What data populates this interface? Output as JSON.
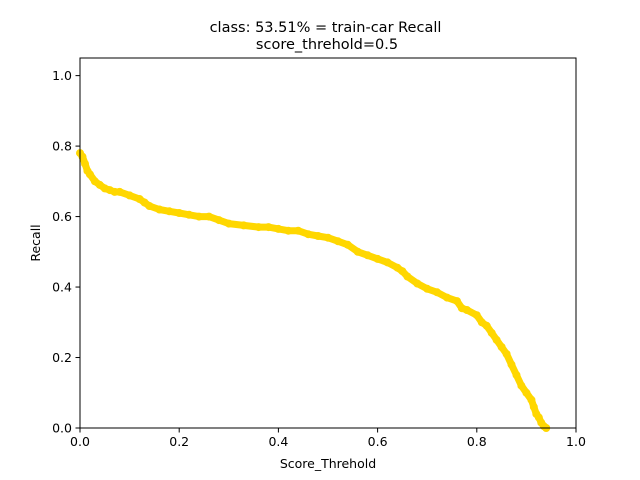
{
  "chart_data": {
    "type": "line",
    "title": "class: 53.51% = train-car Recall",
    "subtitle": "score_threhold=0.5",
    "xlabel": "Score_Threhold",
    "ylabel": "Recall",
    "xlim": [
      0.0,
      1.0
    ],
    "ylim": [
      0.0,
      1.05
    ],
    "xticks": [
      "0.0",
      "0.2",
      "0.4",
      "0.6",
      "0.8",
      "1.0"
    ],
    "yticks": [
      "0.0",
      "0.2",
      "0.4",
      "0.6",
      "0.8",
      "1.0"
    ],
    "grid": false,
    "series": [
      {
        "color": "#FFD700",
        "x": [
          0.0,
          0.005,
          0.01,
          0.015,
          0.02,
          0.03,
          0.04,
          0.05,
          0.06,
          0.07,
          0.08,
          0.1,
          0.12,
          0.13,
          0.14,
          0.16,
          0.18,
          0.2,
          0.22,
          0.24,
          0.26,
          0.28,
          0.3,
          0.33,
          0.36,
          0.38,
          0.4,
          0.42,
          0.44,
          0.46,
          0.48,
          0.5,
          0.52,
          0.54,
          0.56,
          0.58,
          0.6,
          0.62,
          0.64,
          0.65,
          0.66,
          0.68,
          0.7,
          0.72,
          0.74,
          0.76,
          0.77,
          0.78,
          0.8,
          0.81,
          0.82,
          0.83,
          0.84,
          0.85,
          0.86,
          0.87,
          0.88,
          0.89,
          0.9,
          0.91,
          0.915,
          0.92,
          0.925,
          0.93,
          0.935,
          0.94
        ],
        "y": [
          0.78,
          0.77,
          0.75,
          0.73,
          0.72,
          0.7,
          0.69,
          0.68,
          0.675,
          0.67,
          0.67,
          0.66,
          0.65,
          0.64,
          0.63,
          0.62,
          0.615,
          0.61,
          0.605,
          0.6,
          0.6,
          0.59,
          0.58,
          0.575,
          0.57,
          0.57,
          0.565,
          0.56,
          0.56,
          0.55,
          0.545,
          0.54,
          0.53,
          0.52,
          0.5,
          0.49,
          0.48,
          0.47,
          0.455,
          0.445,
          0.43,
          0.41,
          0.395,
          0.385,
          0.37,
          0.36,
          0.34,
          0.335,
          0.32,
          0.3,
          0.29,
          0.27,
          0.25,
          0.23,
          0.21,
          0.18,
          0.15,
          0.12,
          0.1,
          0.08,
          0.06,
          0.04,
          0.03,
          0.015,
          0.005,
          0.0
        ]
      }
    ]
  }
}
